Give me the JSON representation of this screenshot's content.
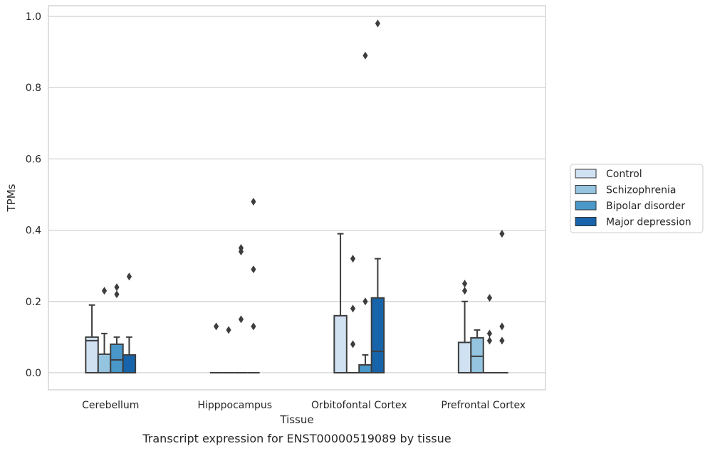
{
  "caption": "Transcript expression for ENST00000519089 by tissue",
  "chart_data": {
    "type": "box",
    "xlabel": "Tissue",
    "ylabel": "TPMs",
    "ylim": [
      -0.048,
      1.03
    ],
    "yticks": [
      0.0,
      0.2,
      0.4,
      0.6,
      0.8,
      1.0
    ],
    "ytick_labels": [
      "0.0",
      "0.2",
      "0.4",
      "0.6",
      "0.8",
      "1.0"
    ],
    "grid": "horizontal",
    "legend_position": "right",
    "categories": [
      "Cerebellum",
      "Hipppocampus",
      "Orbitofontal Cortex",
      "Prefrontal Cortex"
    ],
    "series": [
      {
        "name": "Control",
        "color": "#d0e1f2",
        "boxes": [
          {
            "q1": 0.0,
            "median": 0.09,
            "q3": 0.1,
            "whisker_low": 0.0,
            "whisker_high": 0.19,
            "outliers": []
          },
          {
            "q1": 0.0,
            "median": 0.0,
            "q3": 0.0,
            "whisker_low": 0.0,
            "whisker_high": 0.0,
            "outliers": [
              0.13
            ]
          },
          {
            "q1": 0.0,
            "median": 0.0,
            "q3": 0.16,
            "whisker_low": 0.0,
            "whisker_high": 0.39,
            "outliers": []
          },
          {
            "q1": 0.0,
            "median": 0.0,
            "q3": 0.085,
            "whisker_low": 0.0,
            "whisker_high": 0.2,
            "outliers": [
              0.23,
              0.25
            ]
          }
        ]
      },
      {
        "name": "Schizophrenia",
        "color": "#94c4df",
        "boxes": [
          {
            "q1": 0.0,
            "median": 0.0,
            "q3": 0.052,
            "whisker_low": 0.0,
            "whisker_high": 0.11,
            "outliers": [
              0.23
            ]
          },
          {
            "q1": 0.0,
            "median": 0.0,
            "q3": 0.0,
            "whisker_low": 0.0,
            "whisker_high": 0.0,
            "outliers": [
              0.12
            ]
          },
          {
            "q1": 0.0,
            "median": 0.0,
            "q3": 0.0,
            "whisker_low": 0.0,
            "whisker_high": 0.0,
            "outliers": [
              0.08,
              0.18,
              0.32
            ]
          },
          {
            "q1": 0.0,
            "median": 0.046,
            "q3": 0.098,
            "whisker_low": 0.0,
            "whisker_high": 0.12,
            "outliers": []
          }
        ]
      },
      {
        "name": "Bipolar disorder",
        "color": "#4a98c9",
        "boxes": [
          {
            "q1": 0.0,
            "median": 0.036,
            "q3": 0.08,
            "whisker_low": 0.0,
            "whisker_high": 0.1,
            "outliers": [
              0.22,
              0.24
            ]
          },
          {
            "q1": 0.0,
            "median": 0.0,
            "q3": 0.0,
            "whisker_low": 0.0,
            "whisker_high": 0.0,
            "outliers": [
              0.15,
              0.34,
              0.35
            ]
          },
          {
            "q1": 0.0,
            "median": 0.0,
            "q3": 0.022,
            "whisker_low": 0.0,
            "whisker_high": 0.05,
            "outliers": [
              0.2,
              0.89
            ]
          },
          {
            "q1": 0.0,
            "median": 0.0,
            "q3": 0.0,
            "whisker_low": 0.0,
            "whisker_high": 0.0,
            "outliers": [
              0.09,
              0.11,
              0.21
            ]
          }
        ]
      },
      {
        "name": "Major depression",
        "color": "#1764ab",
        "boxes": [
          {
            "q1": 0.0,
            "median": 0.0,
            "q3": 0.05,
            "whisker_low": 0.0,
            "whisker_high": 0.1,
            "outliers": [
              0.27
            ]
          },
          {
            "q1": 0.0,
            "median": 0.0,
            "q3": 0.0,
            "whisker_low": 0.0,
            "whisker_high": 0.0,
            "outliers": [
              0.13,
              0.29,
              0.48
            ]
          },
          {
            "q1": 0.0,
            "median": 0.06,
            "q3": 0.21,
            "whisker_low": 0.0,
            "whisker_high": 0.32,
            "outliers": [
              0.98
            ]
          },
          {
            "q1": 0.0,
            "median": 0.0,
            "q3": 0.0,
            "whisker_low": 0.0,
            "whisker_high": 0.0,
            "outliers": [
              0.09,
              0.13,
              0.39
            ]
          }
        ]
      }
    ]
  }
}
